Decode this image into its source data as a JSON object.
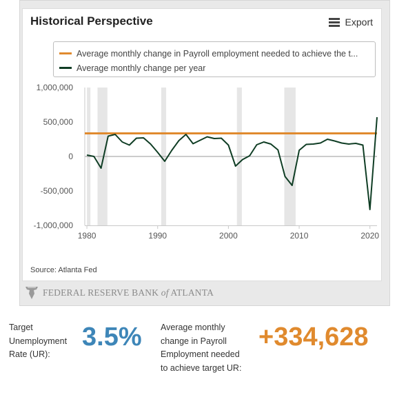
{
  "chart": {
    "title": "Historical Perspective",
    "export_label": "Export",
    "source": "Source: Atlanta Fed"
  },
  "legend": {
    "items": [
      {
        "label": "Average monthly change in Payroll employment needed to achieve the t...",
        "color": "#E08A2E"
      },
      {
        "label": "Average monthly change per year",
        "color": "#0F3D24"
      }
    ]
  },
  "logo": {
    "text_before": "FEDERAL RESERVE BANK",
    "text_italic": "of",
    "text_after": "ATLANTA"
  },
  "stats": {
    "target_ur_label": "Target Unemployment Rate (UR):",
    "target_ur_value": "3.5%",
    "needed_label": "Average monthly change in Payroll Employment needed to achieve target UR:",
    "needed_value": "+334,628",
    "target_color": "#3E86B8",
    "needed_color": "#E08A2E"
  },
  "chart_data": {
    "type": "line",
    "ylim": [
      -1000000,
      1000000
    ],
    "y_ticks": [
      -1000000,
      -500000,
      0,
      500000,
      1000000
    ],
    "y_tick_labels": [
      "-1,000,000",
      "-500,000",
      "0",
      "500,000",
      "1,000,000"
    ],
    "xlim": [
      1979.7,
      2021
    ],
    "x_ticks": [
      1980,
      1990,
      2000,
      2010,
      2020
    ],
    "x_tick_labels": [
      "1980",
      "1990",
      "2000",
      "2010",
      "2020"
    ],
    "recession_bands": [
      [
        1980.0,
        1980.5
      ],
      [
        1981.5,
        1982.9
      ],
      [
        1990.5,
        1991.2
      ],
      [
        2001.2,
        2001.9
      ],
      [
        2007.9,
        2009.5
      ]
    ],
    "series": [
      {
        "name": "Average monthly change per year",
        "color": "#0F3D24",
        "x": [
          1980,
          1981,
          1982,
          1983,
          1984,
          1985,
          1986,
          1987,
          1988,
          1989,
          1990,
          1991,
          1992,
          1993,
          1994,
          1995,
          1996,
          1997,
          1998,
          1999,
          2000,
          2001,
          2002,
          2003,
          2004,
          2005,
          2006,
          2007,
          2008,
          2009,
          2010,
          2011,
          2012,
          2013,
          2014,
          2015,
          2016,
          2017,
          2018,
          2019,
          2020,
          2021
        ],
        "values": [
          20000,
          0,
          -170000,
          295000,
          320000,
          210000,
          165000,
          265000,
          270000,
          180000,
          60000,
          -70000,
          90000,
          230000,
          320000,
          185000,
          235000,
          285000,
          260000,
          265000,
          165000,
          -140000,
          -45000,
          10000,
          170000,
          210000,
          180000,
          95000,
          -290000,
          -420000,
          90000,
          175000,
          180000,
          195000,
          250000,
          225000,
          195000,
          180000,
          190000,
          165000,
          -770000,
          570000
        ]
      },
      {
        "name": "Average monthly change in Payroll employment needed to achieve the t...",
        "color": "#E08A2E",
        "x": [
          1979.7,
          2021
        ],
        "values": [
          334628,
          334628
        ]
      }
    ]
  }
}
